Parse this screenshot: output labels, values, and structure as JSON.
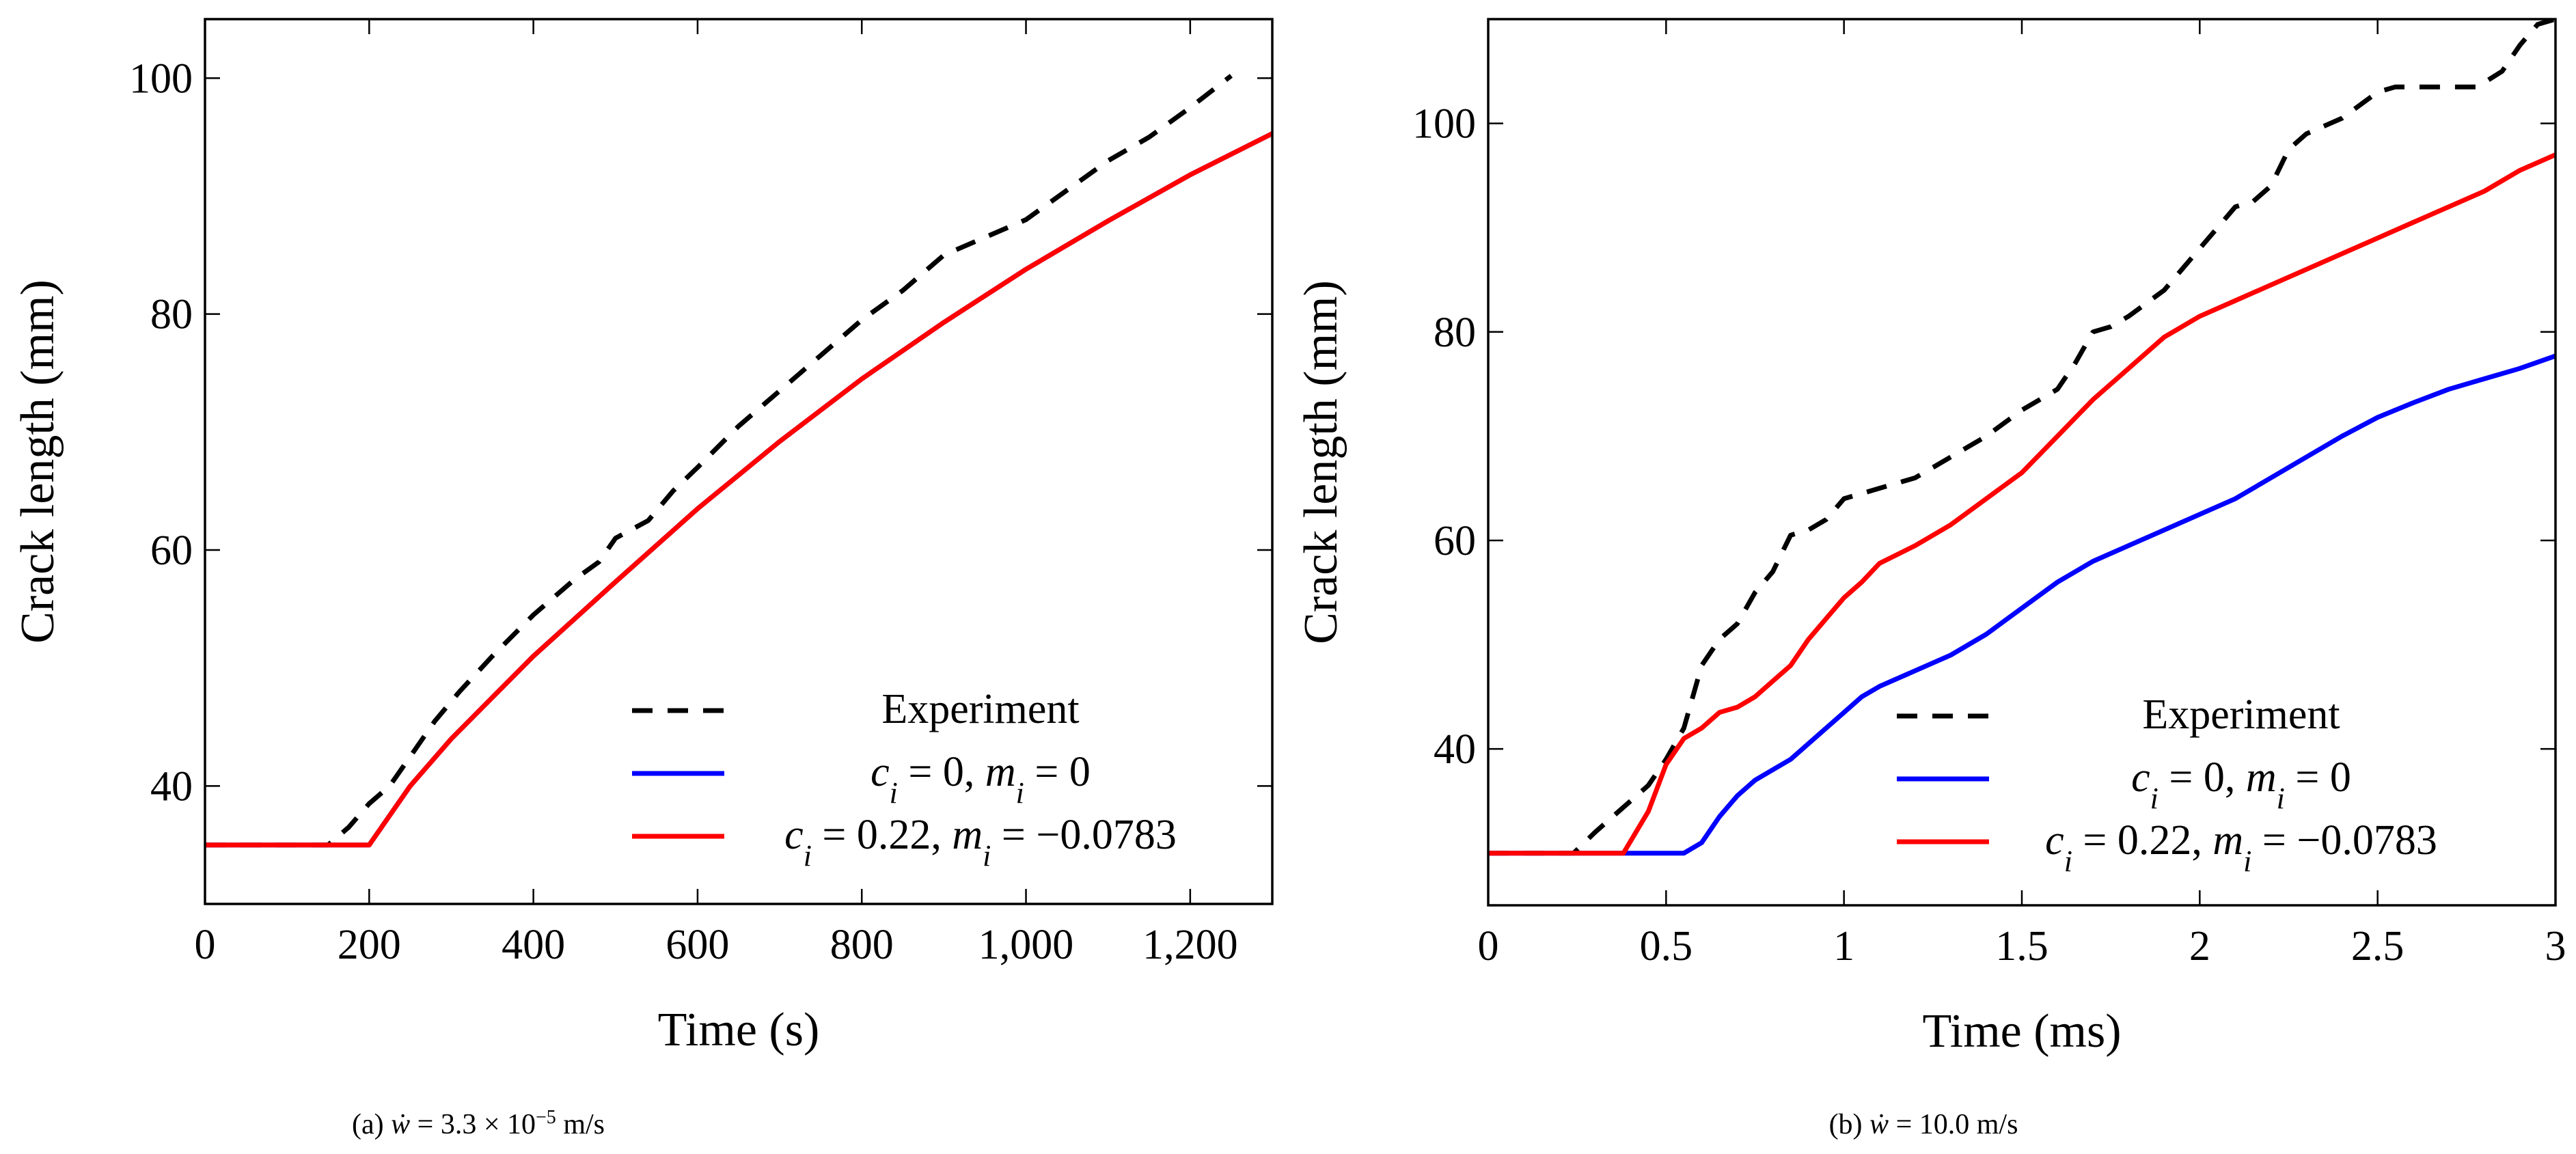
{
  "chart_data": [
    {
      "type": "line",
      "xlabel": "Time (s)",
      "ylabel": "Crack length (mm)",
      "xlim": [
        0,
        1300
      ],
      "ylim": [
        30,
        105
      ],
      "xticks": [
        0,
        200,
        400,
        600,
        800,
        1000,
        1200
      ],
      "xtick_labels": [
        "0",
        "200",
        "400",
        "600",
        "800",
        "1,000",
        "1,200"
      ],
      "yticks": [
        40,
        60,
        80,
        100
      ],
      "ytick_labels": [
        "40",
        "60",
        "80",
        "100"
      ],
      "caption": {
        "prefix": "(a) ",
        "var": "ẇ",
        "eq": " = 3.3 × 10",
        "exp": "−5",
        "unit": " m/s"
      },
      "legend_position": "bottom-right",
      "legend": [
        {
          "name": "Experiment",
          "mi": "",
          "color": "#000000",
          "dash": true
        },
        {
          "name": "c",
          "sub": "i",
          "eq1": " = 0, ",
          "m": "m",
          "msub": "i",
          "eq2": " = 0",
          "color": "#0000ff",
          "dash": false
        },
        {
          "name": "c",
          "sub": "i",
          "eq1": " = 0.22, ",
          "m": "m",
          "msub": "i",
          "eq2": " = −0.0783",
          "color": "#ff0000",
          "dash": false
        }
      ],
      "series": [
        {
          "name": "Experiment",
          "color": "#000000",
          "dash": true,
          "x": [
            0,
            150,
            175,
            200,
            225,
            250,
            280,
            310,
            350,
            400,
            450,
            480,
            500,
            540,
            570,
            600,
            650,
            700,
            750,
            800,
            850,
            900,
            950,
            1000,
            1050,
            1100,
            1150,
            1200,
            1250
          ],
          "y": [
            35,
            35,
            36.5,
            38.5,
            40,
            42.5,
            45.5,
            48,
            51,
            54.5,
            57.5,
            59,
            61,
            62.5,
            65,
            67,
            70.5,
            73.5,
            76.5,
            79.5,
            82,
            85,
            86.5,
            88,
            90.5,
            93,
            95,
            97.5,
            100.2
          ]
        },
        {
          "name": "c_i = 0, m_i = 0",
          "color": "#0000ff",
          "dash": false,
          "x": [
            0,
            200,
            250,
            300,
            350,
            400,
            500,
            600,
            700,
            800,
            900,
            1000,
            1100,
            1200,
            1300
          ],
          "y": [
            35,
            35,
            40,
            44,
            47.5,
            51,
            57.3,
            63.5,
            69.2,
            74.5,
            79.3,
            83.8,
            87.9,
            91.8,
            95.3
          ]
        },
        {
          "name": "c_i = 0.22, m_i = −0.0783",
          "color": "#ff0000",
          "dash": false,
          "x": [
            0,
            200,
            250,
            300,
            350,
            400,
            500,
            600,
            700,
            800,
            900,
            1000,
            1100,
            1200,
            1300
          ],
          "y": [
            35,
            35,
            40,
            44,
            47.5,
            51,
            57.3,
            63.5,
            69.2,
            74.5,
            79.3,
            83.8,
            87.9,
            91.8,
            95.3
          ]
        }
      ]
    },
    {
      "type": "line",
      "xlabel": "Time (ms)",
      "ylabel": "Crack length (mm)",
      "xlim": [
        0,
        3
      ],
      "ylim": [
        25,
        110
      ],
      "xticks": [
        0,
        0.5,
        1,
        1.5,
        2,
        2.5,
        3
      ],
      "xtick_labels": [
        "0",
        "0.5",
        "1",
        "1.5",
        "2",
        "2.5",
        "3"
      ],
      "yticks": [
        40,
        60,
        80,
        100
      ],
      "ytick_labels": [
        "40",
        "60",
        "80",
        "100"
      ],
      "caption": {
        "prefix": "(b) ",
        "var": "ẇ",
        "eq": " = 10.0 m/s",
        "exp": "",
        "unit": ""
      },
      "legend_position": "bottom-right",
      "legend": [
        {
          "name": "Experiment",
          "mi": "",
          "color": "#000000",
          "dash": true
        },
        {
          "name": "c",
          "sub": "i",
          "eq1": " = 0, ",
          "m": "m",
          "msub": "i",
          "eq2": " = 0",
          "color": "#0000ff",
          "dash": false
        },
        {
          "name": "c",
          "sub": "i",
          "eq1": " = 0.22, ",
          "m": "m",
          "msub": "i",
          "eq2": " = −0.0783",
          "color": "#ff0000",
          "dash": false
        }
      ],
      "series": [
        {
          "name": "Experiment",
          "color": "#000000",
          "dash": true,
          "x": [
            0,
            0.24,
            0.3,
            0.35,
            0.4,
            0.45,
            0.5,
            0.55,
            0.6,
            0.65,
            0.7,
            0.75,
            0.8,
            0.85,
            0.9,
            0.95,
            1.0,
            1.05,
            1.1,
            1.2,
            1.3,
            1.4,
            1.5,
            1.6,
            1.65,
            1.7,
            1.75,
            1.8,
            1.9,
            2.0,
            2.05,
            2.1,
            2.15,
            2.2,
            2.25,
            2.3,
            2.4,
            2.5,
            2.55,
            2.6,
            2.7,
            2.78,
            2.85,
            2.9,
            2.95,
            3.0
          ],
          "y": [
            30,
            30,
            32,
            33.5,
            35,
            36.5,
            39,
            42,
            48,
            50.5,
            52,
            55,
            57,
            60.5,
            61,
            62,
            64,
            64.5,
            65,
            66,
            68,
            70,
            72.5,
            74.5,
            77,
            80,
            80.5,
            81.5,
            84,
            88,
            90,
            92,
            92.5,
            94,
            97.5,
            99,
            100.5,
            103,
            103.5,
            103.5,
            103.5,
            103.5,
            105,
            107.5,
            109.5,
            110
          ]
        },
        {
          "name": "c_i = 0, m_i = 0",
          "color": "#0000ff",
          "dash": false,
          "x": [
            0,
            0.55,
            0.6,
            0.65,
            0.7,
            0.75,
            0.8,
            0.85,
            0.9,
            0.95,
            1.0,
            1.05,
            1.1,
            1.2,
            1.3,
            1.4,
            1.5,
            1.6,
            1.7,
            1.8,
            1.9,
            2.0,
            2.1,
            2.2,
            2.3,
            2.4,
            2.5,
            2.6,
            2.7,
            2.8,
            2.9,
            3.0
          ],
          "y": [
            30,
            30,
            31,
            33.5,
            35.5,
            37,
            38,
            39,
            40.5,
            42,
            43.5,
            45,
            46,
            47.5,
            49,
            51,
            53.5,
            56,
            58,
            59.5,
            61,
            62.5,
            64,
            66,
            68,
            70,
            71.8,
            73.2,
            74.5,
            75.5,
            76.5,
            77.7
          ]
        },
        {
          "name": "c_i = 0.22, m_i = −0.0783",
          "color": "#ff0000",
          "dash": false,
          "x": [
            0,
            0.38,
            0.45,
            0.5,
            0.55,
            0.6,
            0.65,
            0.7,
            0.75,
            0.8,
            0.85,
            0.9,
            0.95,
            1.0,
            1.05,
            1.1,
            1.2,
            1.3,
            1.4,
            1.5,
            1.6,
            1.7,
            1.8,
            1.9,
            2.0,
            2.1,
            2.2,
            2.3,
            2.4,
            2.5,
            2.6,
            2.7,
            2.8,
            2.9,
            3.0
          ],
          "y": [
            30,
            30,
            34,
            38.5,
            41,
            42,
            43.5,
            44,
            45,
            46.5,
            48,
            50.5,
            52.5,
            54.5,
            56,
            57.8,
            59.5,
            61.5,
            64,
            66.5,
            70,
            73.5,
            76.5,
            79.5,
            81.5,
            83,
            84.5,
            86,
            87.5,
            89,
            90.5,
            92,
            93.5,
            95.5,
            97
          ]
        }
      ]
    }
  ]
}
